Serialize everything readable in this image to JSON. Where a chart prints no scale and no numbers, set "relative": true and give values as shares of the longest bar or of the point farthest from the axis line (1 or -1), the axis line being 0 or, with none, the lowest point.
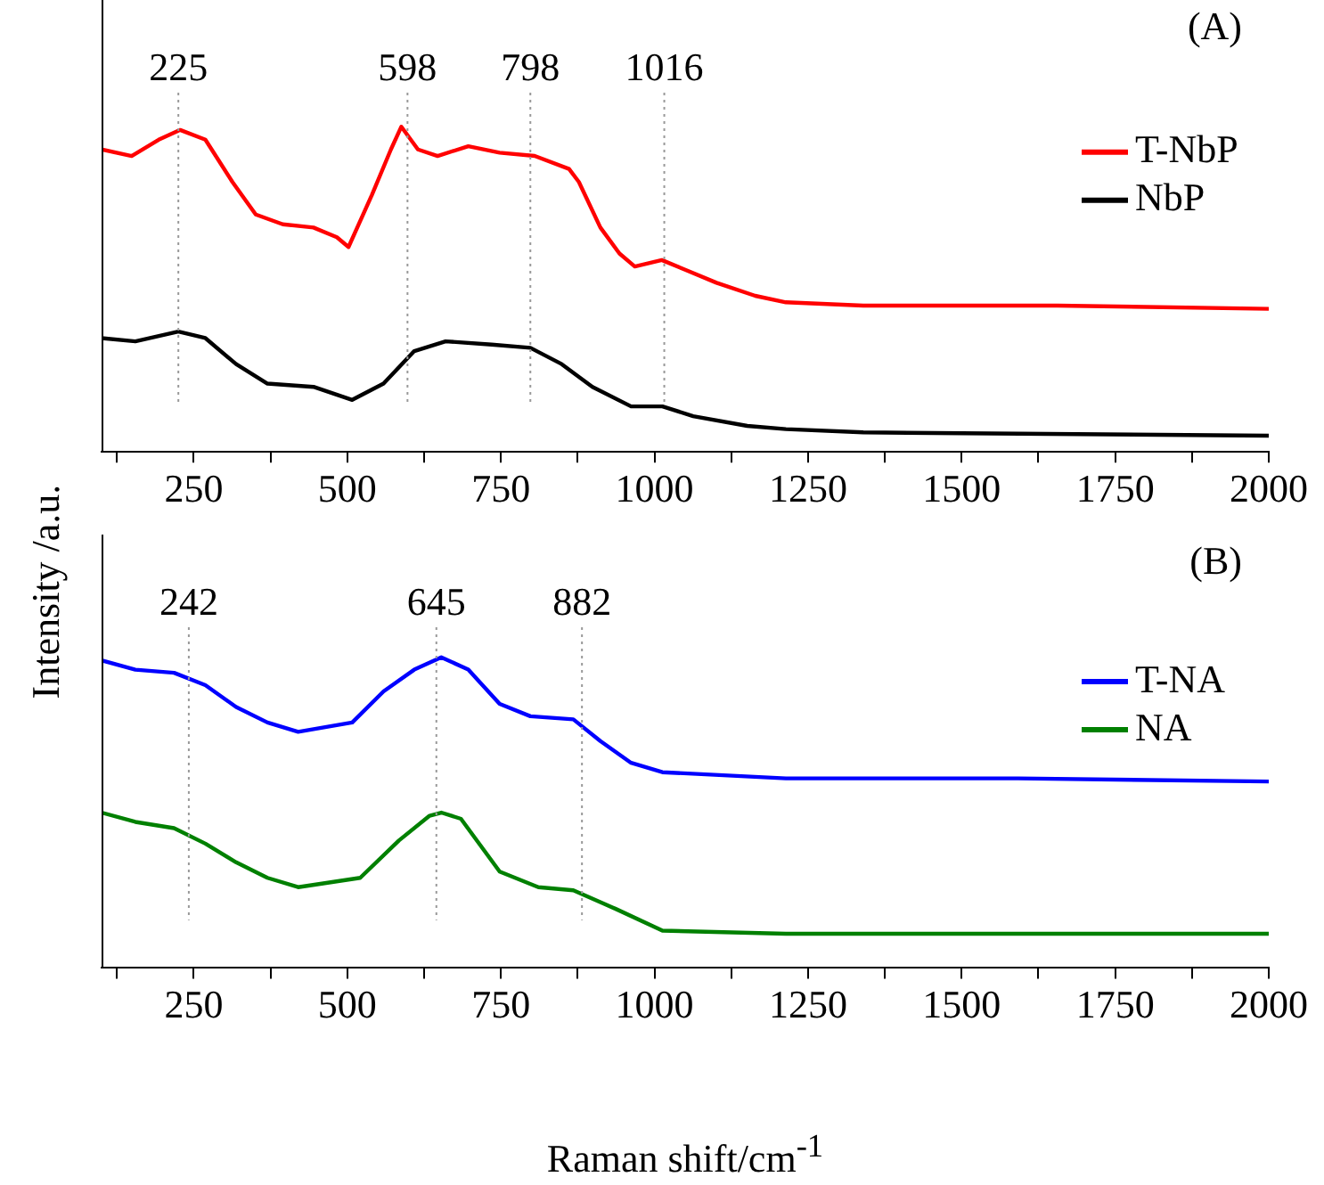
{
  "chart_data": [
    {
      "type": "line",
      "relative": true,
      "ylabel": "Intensity /a.u.",
      "xlim": [
        100,
        2000
      ],
      "xticks": [
        {
          "value": 125,
          "label": null
        },
        250,
        {
          "value": 375,
          "label": null
        },
        500,
        {
          "value": 625,
          "label": null
        },
        750,
        {
          "value": 875,
          "label": null
        },
        1000,
        {
          "value": 1125,
          "label": null
        },
        1250,
        {
          "value": 1375,
          "label": null
        },
        1500,
        {
          "value": 1625,
          "label": null
        },
        1750,
        {
          "value": 1875,
          "label": null
        },
        2000
      ],
      "legend": "right",
      "grid": false,
      "marker": "none",
      "annotations": [
        "(A)"
      ],
      "ref_lines": [
        {
          "axis": "x",
          "value": 225,
          "label": "225",
          "color": "#999999",
          "line_style": "dotted"
        },
        {
          "axis": "x",
          "value": 598,
          "label": "598",
          "color": "#999999",
          "line_style": "dotted"
        },
        {
          "axis": "x",
          "value": 798,
          "label": "798",
          "color": "#999999",
          "line_style": "dotted"
        },
        {
          "axis": "x",
          "value": 1016,
          "label": "1016",
          "color": "#999999",
          "line_style": "dotted"
        }
      ],
      "series": [
        {
          "name": "T-NbP",
          "color": "#ff0000",
          "x": [
            100,
            149,
            193,
            228,
            269,
            313,
            351,
            395,
            445,
            483,
            502,
            540,
            571,
            588,
            615,
            647,
            697,
            748,
            805,
            861,
            877,
            912,
            943,
            968,
            1012,
            1050,
            1101,
            1164,
            1214,
            1340,
            1592,
            1656,
            2000
          ],
          "values": [
            0.93,
            0.91,
            0.96,
            0.99,
            0.96,
            0.83,
            0.73,
            0.7,
            0.69,
            0.66,
            0.63,
            0.79,
            0.93,
            1.0,
            0.93,
            0.91,
            0.94,
            0.92,
            0.91,
            0.87,
            0.83,
            0.69,
            0.61,
            0.57,
            0.59,
            0.56,
            0.52,
            0.48,
            0.46,
            0.45,
            0.45,
            0.45,
            0.44
          ]
        },
        {
          "name": "NbP",
          "color": "#000000",
          "x": [
            100,
            155,
            225,
            269,
            319,
            370,
            445,
            508,
            559,
            609,
            660,
            735,
            798,
            849,
            899,
            962,
            1013,
            1063,
            1151,
            1214,
            1340,
            2000
          ],
          "values": [
            0.35,
            0.34,
            0.37,
            0.35,
            0.27,
            0.21,
            0.2,
            0.16,
            0.21,
            0.31,
            0.34,
            0.33,
            0.32,
            0.27,
            0.2,
            0.14,
            0.14,
            0.11,
            0.08,
            0.07,
            0.06,
            0.05
          ]
        }
      ]
    },
    {
      "type": "line",
      "relative": true,
      "xlabel": "Raman shift/cm$^{-1}$",
      "xlim": [
        100,
        2000
      ],
      "xticks": [
        {
          "value": 125,
          "label": null
        },
        250,
        {
          "value": 375,
          "label": null
        },
        500,
        {
          "value": 625,
          "label": null
        },
        750,
        {
          "value": 875,
          "label": null
        },
        1000,
        {
          "value": 1125,
          "label": null
        },
        1250,
        {
          "value": 1375,
          "label": null
        },
        1500,
        {
          "value": 1625,
          "label": null
        },
        1750,
        {
          "value": 1875,
          "label": null
        },
        2000
      ],
      "legend": "right",
      "grid": false,
      "marker": "none",
      "annotations": [
        "(B)"
      ],
      "ref_lines": [
        {
          "axis": "x",
          "value": 242,
          "label": "242",
          "color": "#999999",
          "line_style": "dotted"
        },
        {
          "axis": "x",
          "value": 645,
          "label": "645",
          "color": "#999999",
          "line_style": "dotted"
        },
        {
          "axis": "x",
          "value": 882,
          "label": "882",
          "color": "#999999",
          "line_style": "dotted"
        }
      ],
      "series": [
        {
          "name": "T-NA",
          "color": "#0000ff",
          "x": [
            100,
            155,
            218,
            269,
            319,
            370,
            420,
            508,
            559,
            609,
            653,
            697,
            748,
            798,
            868,
            912,
            962,
            1013,
            1214,
            1592,
            2000
          ],
          "values": [
            0.99,
            0.96,
            0.95,
            0.91,
            0.84,
            0.79,
            0.76,
            0.79,
            0.89,
            0.96,
            1.0,
            0.96,
            0.85,
            0.81,
            0.8,
            0.73,
            0.66,
            0.63,
            0.61,
            0.61,
            0.6
          ]
        },
        {
          "name": "NA",
          "color": "#008000",
          "x": [
            100,
            155,
            218,
            269,
            319,
            370,
            420,
            521,
            584,
            634,
            653,
            685,
            748,
            811,
            868,
            937,
            1013,
            1214,
            1592,
            2000
          ],
          "values": [
            0.5,
            0.47,
            0.45,
            0.4,
            0.34,
            0.29,
            0.26,
            0.29,
            0.41,
            0.49,
            0.5,
            0.48,
            0.31,
            0.26,
            0.25,
            0.19,
            0.12,
            0.11,
            0.11,
            0.11
          ]
        }
      ]
    }
  ]
}
